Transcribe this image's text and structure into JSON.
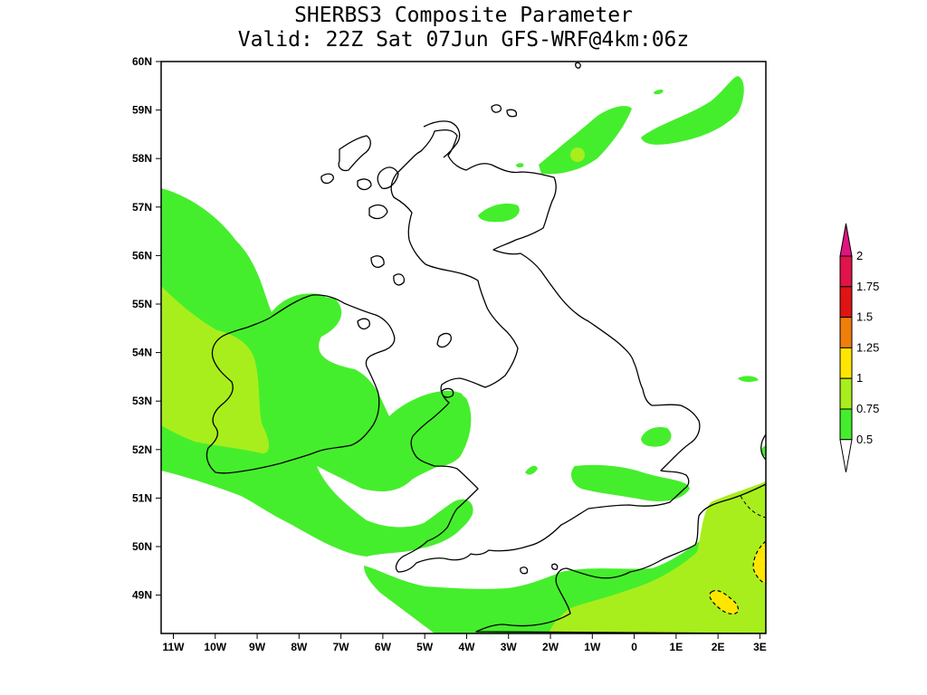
{
  "title": "SHERBS3 Composite Parameter",
  "subtitle": "Valid: 22Z Sat 07Jun GFS-WRF@4km:06z",
  "lat_labels": [
    "60N",
    "59N",
    "58N",
    "57N",
    "56N",
    "55N",
    "54N",
    "53N",
    "52N",
    "51N",
    "50N",
    "49N"
  ],
  "lon_labels": [
    "11W",
    "10W",
    "9W",
    "8W",
    "7W",
    "6W",
    "5W",
    "4W",
    "3W",
    "2W",
    "1W",
    "0",
    "1E",
    "2E",
    "3E"
  ],
  "legend": {
    "levels": [
      "2",
      "1.75",
      "1.5",
      "1.25",
      "1",
      "0.75",
      "0.5"
    ],
    "colors": {
      "above_2": "#e0147f",
      "1.75_2": "#e0144a",
      "1.5_1.75": "#e01414",
      "1.25_1.5": "#ef7f0a",
      "1_1.25": "#ffe600",
      "0.75_1": "#a8ee1c",
      "0.5_0.75": "#45ee2c",
      "below_0.5": "#ffffff"
    }
  },
  "colors": {
    "field_low": "#45ee2c",
    "field_mid": "#a8ee1c",
    "field_high": "#ffe600",
    "coast": "#000000"
  }
}
